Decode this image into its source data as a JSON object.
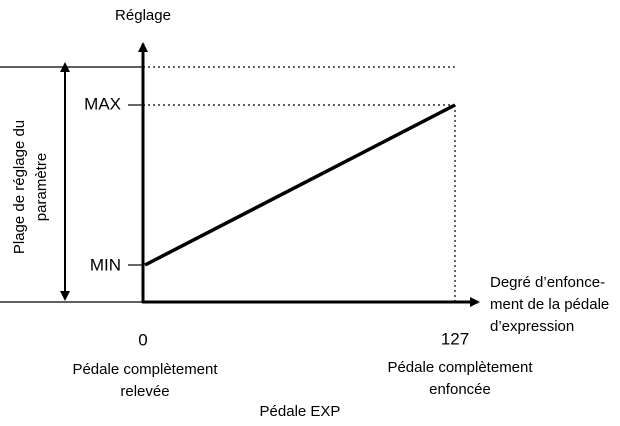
{
  "y_axis": {
    "title": "Réglage",
    "max_label": "MAX",
    "min_label": "MIN"
  },
  "range_label": {
    "lines": [
      "Plage de réglage du",
      "paramètre"
    ]
  },
  "x_axis": {
    "title_lines": [
      "Degré d’enfonce-",
      "ment de la pédale",
      "d’expression"
    ],
    "start_label": "0",
    "end_label": "127"
  },
  "start_caption": {
    "lines": [
      "Pédale complètement",
      "relevée"
    ]
  },
  "end_caption": {
    "lines": [
      "Pédale complètement",
      "enfoncée"
    ]
  },
  "footer": "Pédale EXP"
}
